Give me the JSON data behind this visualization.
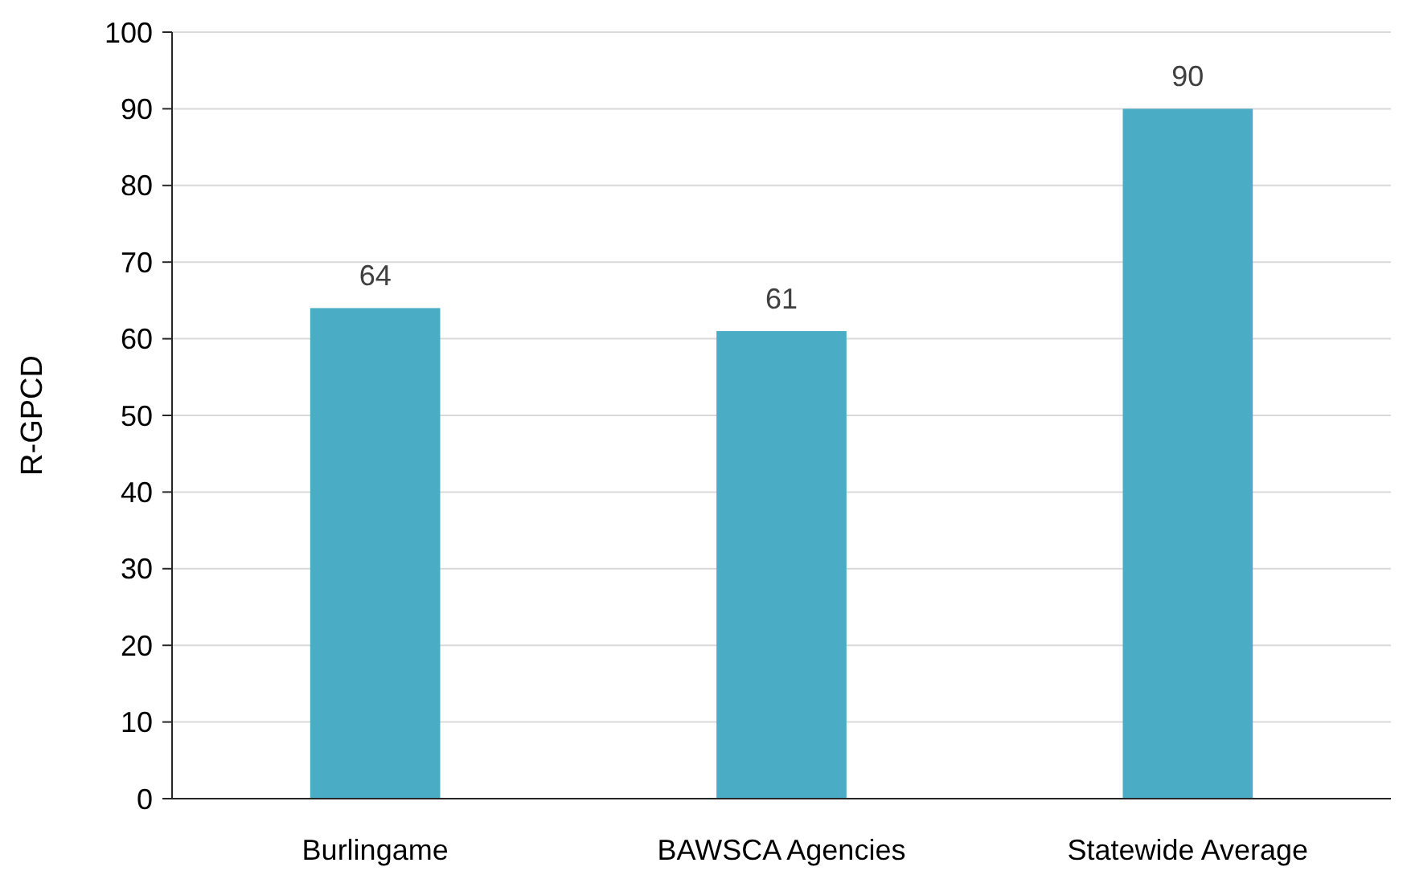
{
  "chart_data": {
    "type": "bar",
    "ylabel": "R-GPCD",
    "categories": [
      "Burlingame",
      "BAWSCA Agencies",
      "Statewide Average"
    ],
    "values": [
      64,
      61,
      90
    ],
    "color": "#4bacc6",
    "ylim": [
      0,
      100
    ],
    "yticks": [
      0,
      10,
      20,
      30,
      40,
      50,
      60,
      70,
      80,
      90,
      100
    ],
    "grid": "y",
    "data_labels": true
  }
}
